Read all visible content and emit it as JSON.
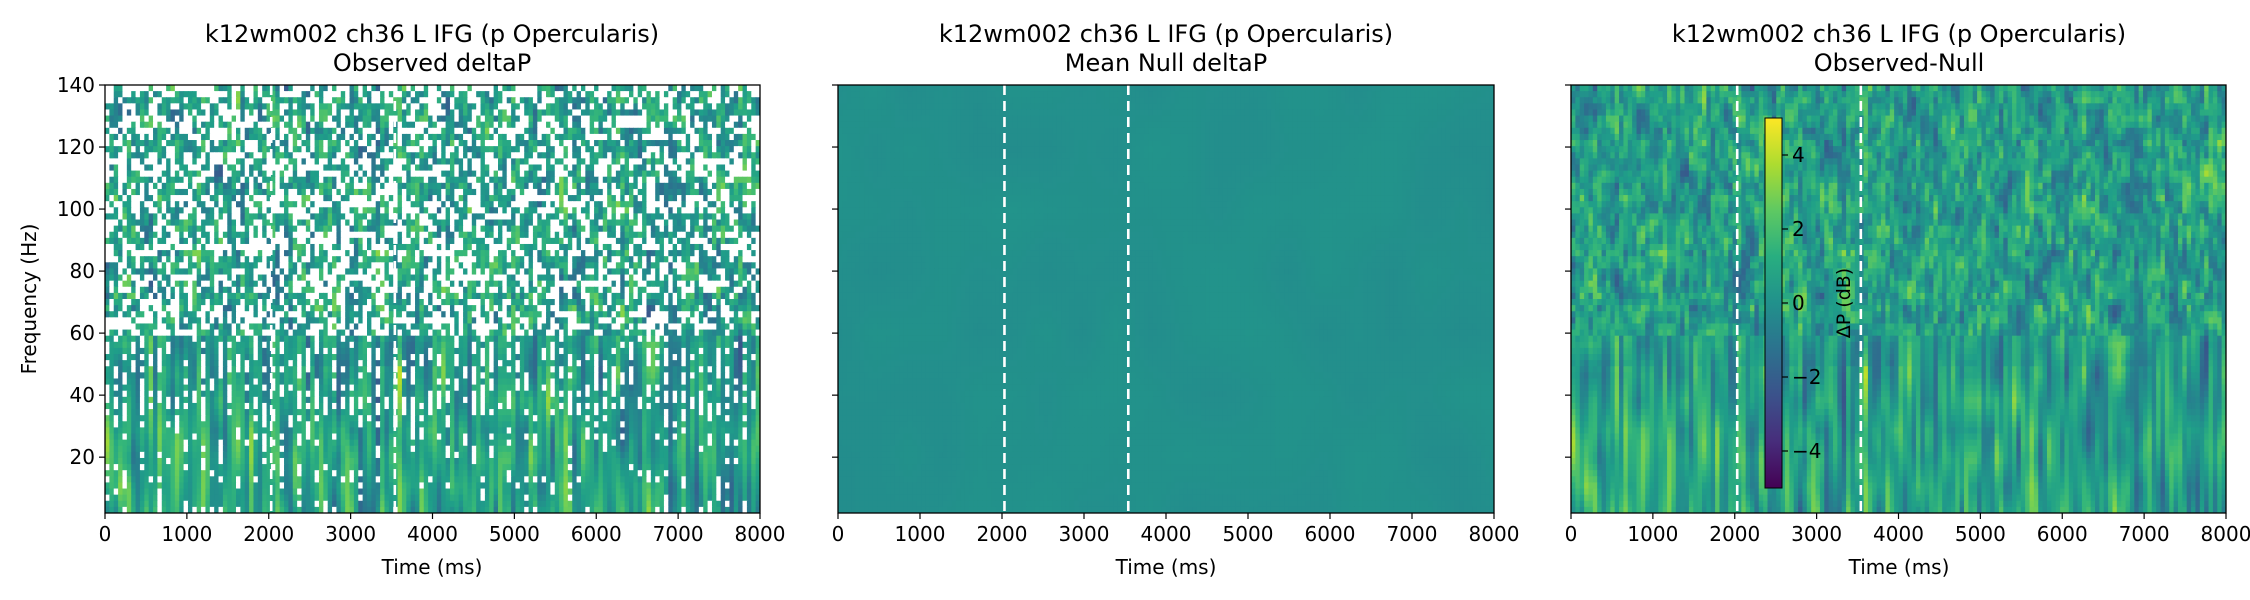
{
  "chart_data": [
    {
      "type": "heatmap",
      "title_line1": "k12wm002 ch36 L IFG (p Opercularis)",
      "title_line2": "Observed deltaP",
      "xlabel": "Time (ms)",
      "ylabel": "Frequency (Hz)",
      "xlim": [
        0,
        8000
      ],
      "ylim": [
        2,
        140
      ],
      "xticks": [
        0,
        1000,
        2000,
        3000,
        4000,
        5000,
        6000,
        7000,
        8000
      ],
      "yticks": [
        20,
        40,
        60,
        80,
        100,
        120,
        140
      ],
      "vlines_ms": [
        2030,
        3540
      ],
      "masked": "white non-significant bins",
      "colormap": "viridis",
      "value_range": [
        -5,
        5
      ]
    },
    {
      "type": "heatmap",
      "title_line1": "k12wm002 ch36 L IFG (p Opercularis)",
      "title_line2": "Mean Null deltaP",
      "xlabel": "Time (ms)",
      "ylabel": "",
      "xlim": [
        0,
        8000
      ],
      "ylim": [
        2,
        140
      ],
      "xticks": [
        0,
        1000,
        2000,
        3000,
        4000,
        5000,
        6000,
        7000,
        8000
      ],
      "yticks": [
        20,
        40,
        60,
        80,
        100,
        120,
        140
      ],
      "vlines_ms": [
        2030,
        3540
      ],
      "colormap": "viridis",
      "value_range": [
        -5,
        5
      ]
    },
    {
      "type": "heatmap",
      "title_line1": "k12wm002 ch36 L IFG (p Opercularis)",
      "title_line2": "Observed-Null",
      "xlabel": "Time (ms)",
      "ylabel": "",
      "xlim": [
        0,
        8000
      ],
      "ylim": [
        2,
        140
      ],
      "xticks": [
        0,
        1000,
        2000,
        3000,
        4000,
        5000,
        6000,
        7000,
        8000
      ],
      "yticks": [
        20,
        40,
        60,
        80,
        100,
        120,
        140
      ],
      "vlines_ms": [
        2030,
        3540
      ],
      "colormap": "viridis",
      "value_range": [
        -5,
        5
      ],
      "colorbar": {
        "label": "ΔP (dB)",
        "ticks": [
          4,
          2,
          0,
          -2,
          -4
        ],
        "tick_labels": [
          "4",
          "2",
          "0",
          "−2",
          "−4"
        ],
        "range": [
          -5,
          5
        ]
      }
    }
  ]
}
